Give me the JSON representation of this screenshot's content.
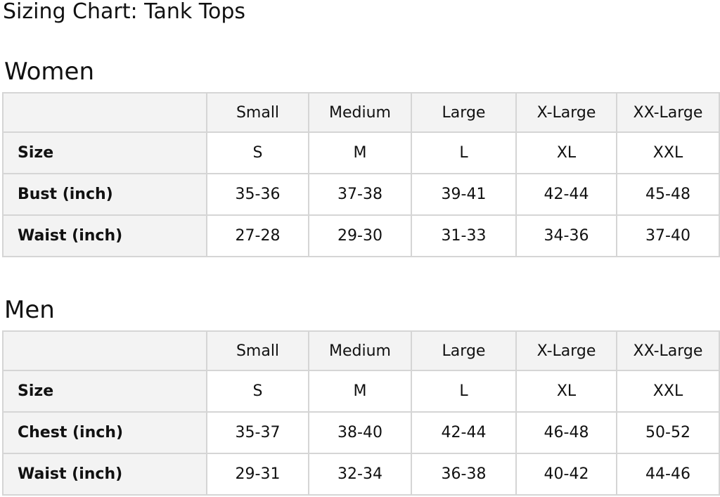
{
  "title": "Sizing Chart: Tank Tops",
  "tables": [
    {
      "heading": "Women",
      "columns": [
        "",
        "Small",
        "Medium",
        "Large",
        "X-Large",
        "XX-Large"
      ],
      "rows": [
        {
          "label": "Size",
          "values": [
            "S",
            "M",
            "L",
            "XL",
            "XXL"
          ]
        },
        {
          "label": "Bust (inch)",
          "values": [
            "35-36",
            "37-38",
            "39-41",
            "42-44",
            "45-48"
          ]
        },
        {
          "label": "Waist (inch)",
          "values": [
            "27-28",
            "29-30",
            "31-33",
            "34-36",
            "37-40"
          ]
        }
      ]
    },
    {
      "heading": "Men",
      "columns": [
        "",
        "Small",
        "Medium",
        "Large",
        "X-Large",
        "XX-Large"
      ],
      "rows": [
        {
          "label": "Size",
          "values": [
            "S",
            "M",
            "L",
            "XL",
            "XXL"
          ]
        },
        {
          "label": "Chest (inch)",
          "values": [
            "35-37",
            "38-40",
            "42-44",
            "46-48",
            "50-52"
          ]
        },
        {
          "label": "Waist (inch)",
          "values": [
            "29-31",
            "32-34",
            "36-38",
            "40-42",
            "44-46"
          ]
        }
      ]
    }
  ]
}
